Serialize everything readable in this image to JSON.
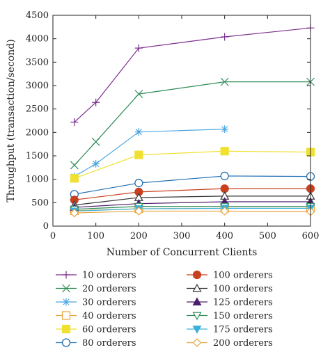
{
  "chart_data": {
    "type": "line",
    "title": "",
    "xlabel": "Number of Concurrent Clients",
    "ylabel": "Throughput (transaction/second)",
    "xlim": [
      0,
      600
    ],
    "ylim": [
      0,
      4500
    ],
    "xticks": [
      0,
      100,
      200,
      300,
      400,
      500,
      600
    ],
    "yticks": [
      0,
      500,
      1000,
      1500,
      2000,
      2500,
      3000,
      3500,
      4000,
      4500
    ],
    "grid": false,
    "legend": "below",
    "series": [
      {
        "name": "10 orderers",
        "color": "#7b2d8e",
        "marker": "plus",
        "x": [
          50,
          100,
          200,
          400,
          600
        ],
        "y": [
          2220,
          2640,
          3800,
          4040,
          4230
        ]
      },
      {
        "name": "20 orderers",
        "color": "#2e8b57",
        "marker": "x",
        "x": [
          50,
          100,
          200,
          400,
          600
        ],
        "y": [
          1300,
          1800,
          2820,
          3080,
          3080
        ]
      },
      {
        "name": "30 orderers",
        "color": "#4da6e0",
        "marker": "star",
        "x": [
          50,
          100,
          200,
          400
        ],
        "y": [
          1060,
          1330,
          2010,
          2070
        ]
      },
      {
        "name": "40 orderers",
        "color": "#e8a33c",
        "marker": "square-open",
        "x": [
          50,
          200,
          400,
          600
        ],
        "y": [
          330,
          370,
          380,
          380
        ]
      },
      {
        "name": "60 orderers",
        "color": "#f0e030",
        "marker": "square-filled",
        "x": [
          50,
          200,
          400,
          600
        ],
        "y": [
          1020,
          1520,
          1600,
          1580
        ]
      },
      {
        "name": "80 orderers",
        "color": "#1f6fb2",
        "marker": "circle-open",
        "x": [
          50,
          200,
          400,
          600
        ],
        "y": [
          680,
          920,
          1070,
          1060
        ]
      },
      {
        "name": "100 orderers",
        "color": "#c8401e",
        "marker": "circle-filled",
        "x": [
          50,
          200,
          400,
          600
        ],
        "y": [
          560,
          730,
          800,
          800
        ]
      },
      {
        "name": "100 orderers",
        "color": "#333333",
        "marker": "triangle-open",
        "x": [
          50,
          200,
          400,
          600
        ],
        "y": [
          450,
          610,
          640,
          640
        ]
      },
      {
        "name": "125 orderers",
        "color": "#4b1f6e",
        "marker": "triangle-filled",
        "x": [
          50,
          200,
          400,
          600
        ],
        "y": [
          400,
          480,
          520,
          520
        ]
      },
      {
        "name": "150 orderers",
        "color": "#2e8b57",
        "marker": "triangle-down-open",
        "x": [
          50,
          200,
          400,
          600
        ],
        "y": [
          360,
          420,
          420,
          420
        ]
      },
      {
        "name": "175 orderers",
        "color": "#3ab0d8",
        "marker": "triangle-down-filled",
        "x": [
          50,
          200,
          400,
          600
        ],
        "y": [
          320,
          370,
          380,
          380
        ]
      },
      {
        "name": "200 orderers",
        "color": "#e8a33c",
        "marker": "diamond-open",
        "x": [
          50,
          200,
          400,
          600
        ],
        "y": [
          280,
          320,
          320,
          310
        ]
      }
    ]
  }
}
